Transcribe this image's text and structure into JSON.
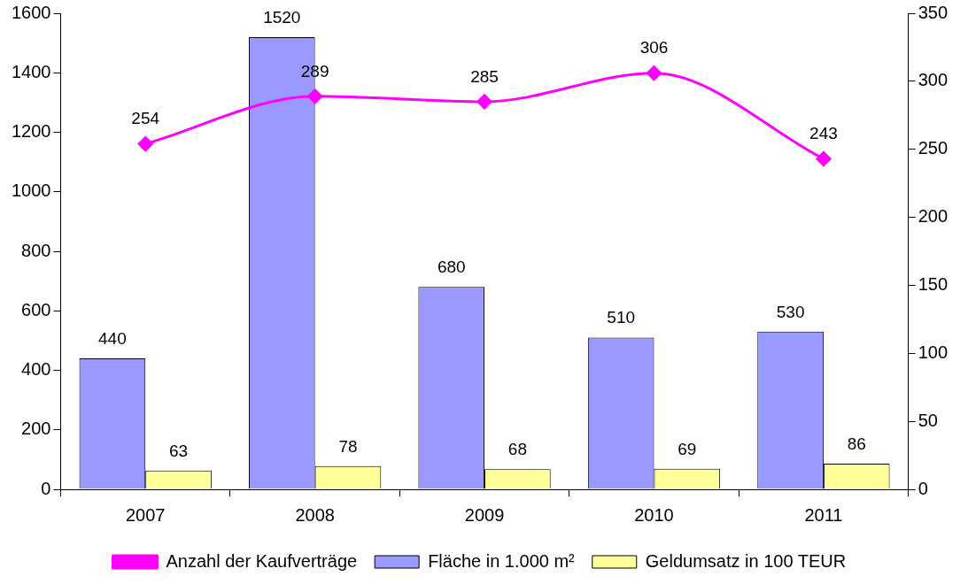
{
  "chart_data": {
    "type": "bar",
    "categories": [
      "2007",
      "2008",
      "2009",
      "2010",
      "2011"
    ],
    "series": [
      {
        "name": "Fläche in 1.000 m²",
        "color": "#9999ff",
        "values": [
          440,
          1520,
          680,
          510,
          530
        ]
      },
      {
        "name": "Geldumsatz in 100 TEUR",
        "color": "#ffff99",
        "values": [
          63,
          78,
          68,
          69,
          86
        ]
      },
      {
        "name": "Anzahl der Kaufverträge",
        "type": "line",
        "axis": "y2",
        "color": "#ff00ff",
        "marker": "diamond",
        "values": [
          254,
          289,
          285,
          306,
          243
        ]
      }
    ],
    "ylim": [
      0,
      1600
    ],
    "yticks": [
      0,
      200,
      400,
      600,
      800,
      1000,
      1200,
      1400,
      1600
    ],
    "y2lim": [
      0,
      350
    ],
    "y2ticks": [
      0,
      50,
      100,
      150,
      200,
      250,
      300,
      350
    ],
    "grid": false,
    "legend": "bottom",
    "data_labels": true
  }
}
